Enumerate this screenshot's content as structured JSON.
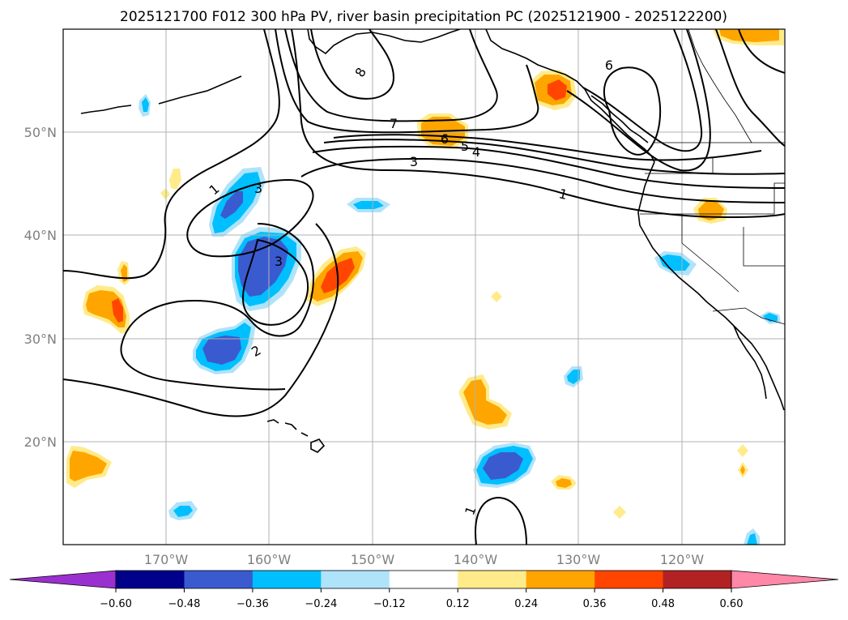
{
  "title": "2025121700 F012 300 hPa PV, river basin precipitation PC (2025121900 - 2025122200)",
  "lat_labels": [
    "50°N",
    "40°N",
    "30°N",
    "20°N"
  ],
  "lon_labels": [
    "170°W",
    "160°W",
    "150°W",
    "140°W",
    "130°W",
    "120°W"
  ],
  "colorbar": {
    "ticks": [
      "−0.60",
      "−0.48",
      "−0.36",
      "−0.24",
      "−0.12",
      "0.12",
      "0.24",
      "0.36",
      "0.48",
      "0.60"
    ],
    "colors": [
      "#9b30d0",
      "#00008b",
      "#3a5bcf",
      "#00bfff",
      "#afe3fa",
      "#ffffff",
      "#ffeb8a",
      "#ffa500",
      "#ff4500",
      "#b22222",
      "#ff87a8"
    ]
  },
  "pv_contour_labels": [
    "8",
    "7",
    "6",
    "5",
    "4",
    "3",
    "1",
    "3",
    "1",
    "3",
    "2",
    "6",
    "1"
  ],
  "colors": {
    "neg_1": "#afe3fa",
    "neg_2": "#00bfff",
    "neg_3": "#3a5bcf",
    "pos_1": "#ffeb8a",
    "pos_2": "#ffa500",
    "pos_3": "#ff4500"
  }
}
